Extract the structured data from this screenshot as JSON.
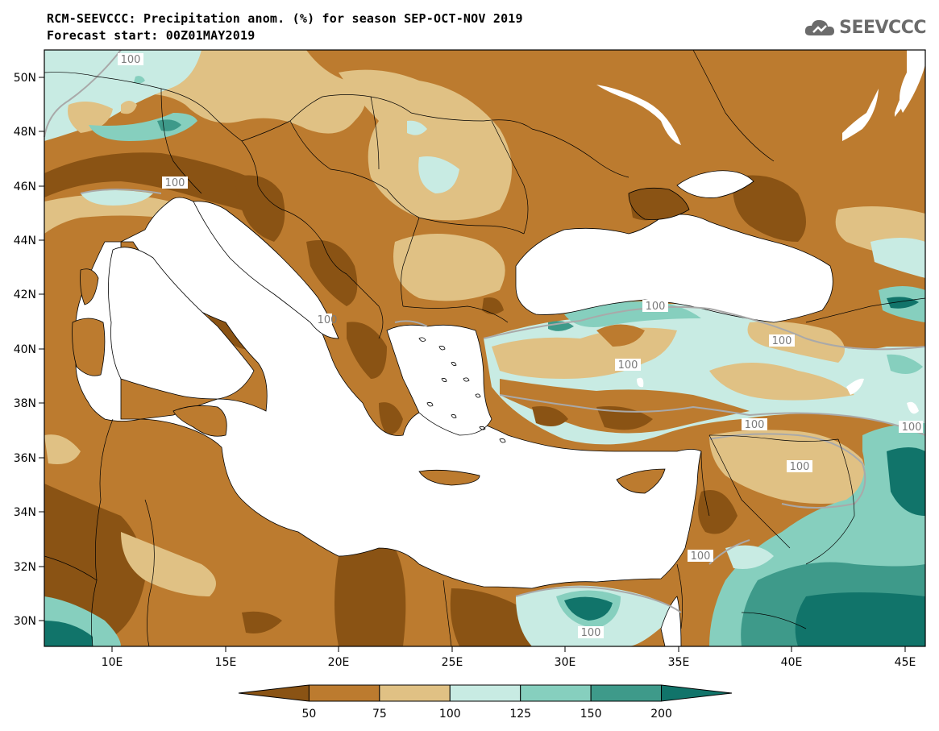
{
  "header": {
    "title_line1": "RCM-SEEVCCC: Precipitation anom. (%) for season SEP-OCT-NOV 2019",
    "title_line2": "Forecast start: 00Z01MAY2019"
  },
  "logo": {
    "text": "SEEVCCC",
    "icon": "cloud-icon"
  },
  "map": {
    "lat_labels": [
      "50N",
      "48N",
      "46N",
      "44N",
      "42N",
      "40N",
      "38N",
      "36N",
      "34N",
      "32N",
      "30N"
    ],
    "lon_labels": [
      "10E",
      "15E",
      "20E",
      "25E",
      "30E",
      "35E",
      "40E",
      "45E"
    ],
    "contour_labels": [
      "100",
      "100",
      "100",
      "100",
      "100",
      "100",
      "100",
      "100",
      "100",
      "100",
      "100"
    ]
  },
  "legend": {
    "tick_labels": [
      "50",
      "75",
      "100",
      "125",
      "150",
      "200"
    ],
    "colors": [
      "#8a5314",
      "#bc7b2f",
      "#e0c184",
      "#c8ebe3",
      "#86cfbe",
      "#3e9a8a",
      "#11746a"
    ]
  }
}
